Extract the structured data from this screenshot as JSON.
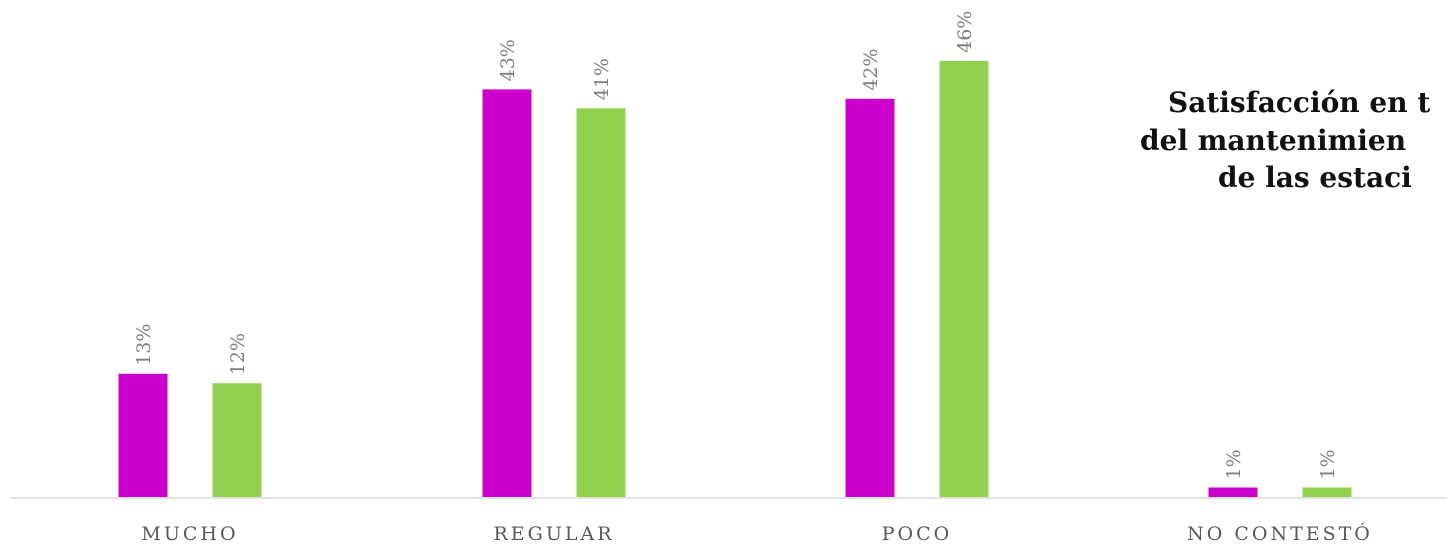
{
  "chart_data": {
    "type": "bar",
    "title_lines": [
      "Satisfacción en t",
      "del mantenimien",
      "de las estaci"
    ],
    "categories": [
      "MUCHO",
      "REGULAR",
      "POCO",
      "NO CONTESTÓ"
    ],
    "series": [
      {
        "color": "#cc00cc",
        "values": [
          13,
          43,
          42,
          1
        ],
        "labels": [
          "13%",
          "43%",
          "42%",
          "1%"
        ]
      },
      {
        "color": "#92d050",
        "values": [
          12,
          41,
          46,
          1
        ],
        "labels": [
          "12%",
          "41%",
          "46%",
          "1%"
        ]
      }
    ],
    "ylim": [
      0,
      46
    ],
    "value_unit": "%",
    "grid": false,
    "legend": "none",
    "axis_color": "#d9d9d9"
  }
}
